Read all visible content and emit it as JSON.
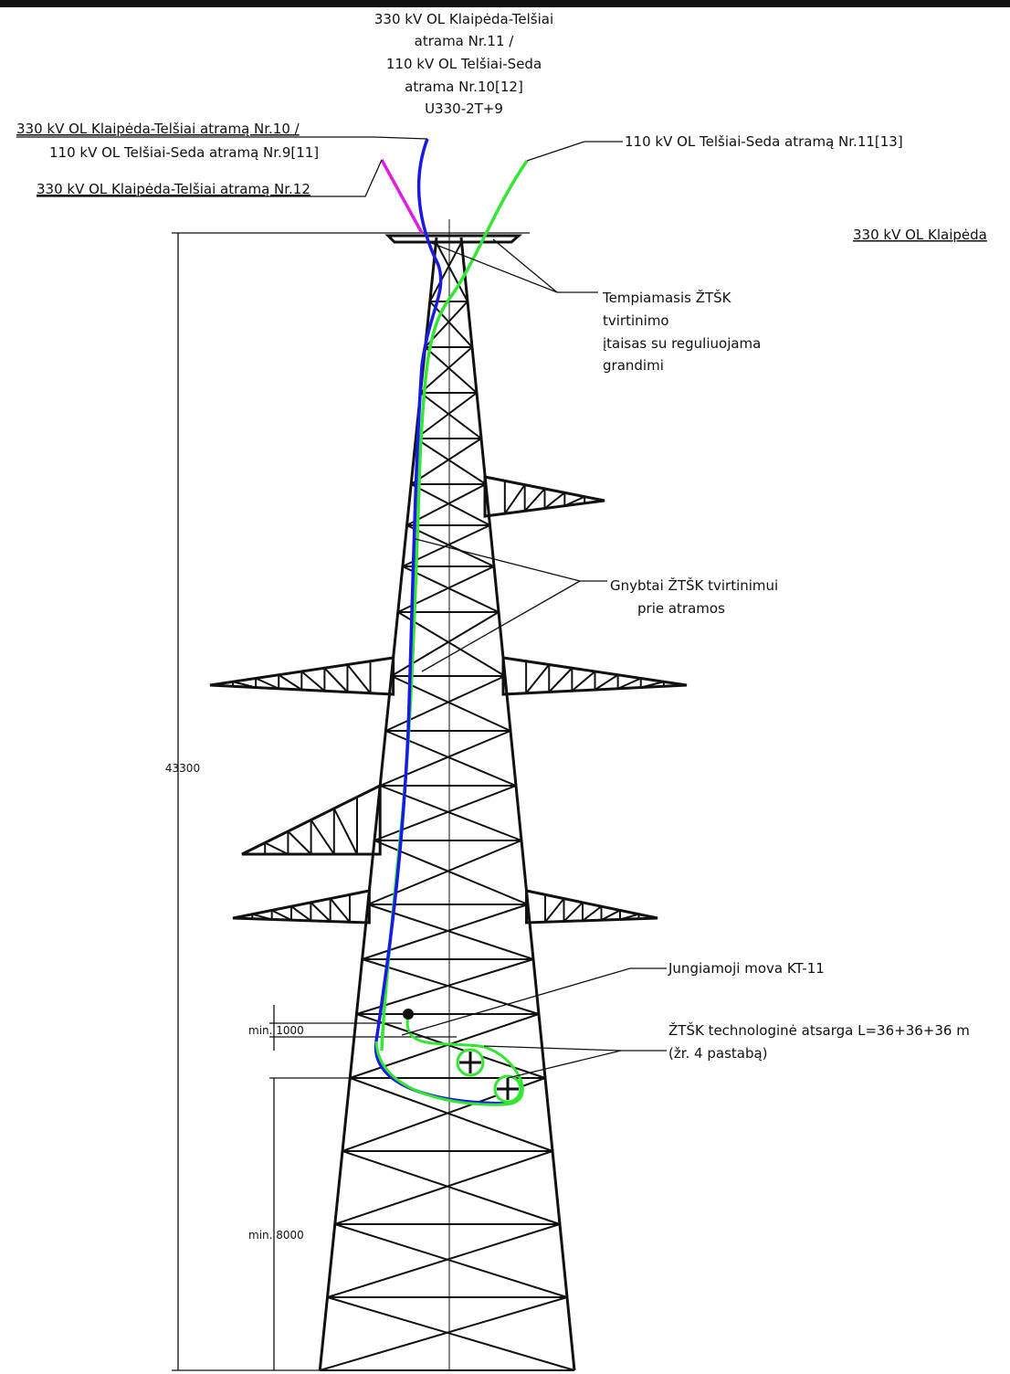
{
  "labels": {
    "tower_title": [
      "330 kV OL Klaipėda-Telšiai",
      "atrama Nr.11 /",
      "110 kV OL Telšiai-Seda",
      "atrama Nr.10[12]",
      "U330-2T+9"
    ],
    "left_upper": [
      "330 kV OL Klaipėda-Telšiai atramą Nr.10 /",
      "110 kV OL Telšiai-Seda atramą Nr.9[11]"
    ],
    "left_lower": "330 kV OL Klaipėda-Telšiai atramą Nr.12",
    "right_upper": "110 kV OL Telšiai-Seda atramą Nr.11[13]",
    "right_cut": "330 kV OL Klaipėda",
    "tension_device": [
      "Tempiamasis ŽTŠK",
      "tvirtinimo",
      "įtaisas su reguliuojama",
      "grandimi"
    ],
    "clamps": [
      "Gnybtai ŽTŠK tvirtinimui",
      "prie atramos"
    ],
    "joint": "Jungiamoji mova KT-11",
    "reserve": [
      "ŽTŠK technologinė atsarga L=36+36+36 m",
      "(žr. 4 pastabą)"
    ]
  },
  "dimensions": {
    "total": "43300",
    "min_top": "min. 1000",
    "min_bottom": "min. 8000"
  }
}
